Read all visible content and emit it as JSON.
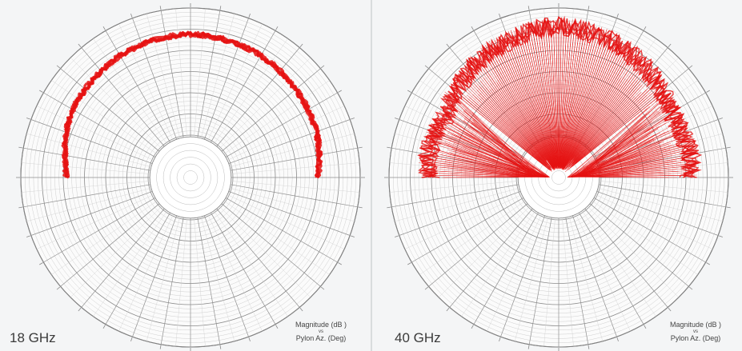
{
  "chart_data": [
    {
      "type": "polar",
      "panel_label": "18 GHz",
      "legend": {
        "line1": "Magnitude (dB )",
        "vs": "vs",
        "line2": "Pylon Az. (Deg)"
      },
      "angular_range_deg": [
        -90,
        90
      ],
      "pattern": {
        "description_free": true,
        "series": [
          {
            "color": "#e51212",
            "angle_deg": [
              -90,
              -80,
              -70,
              -60,
              -50,
              -40,
              -30,
              -20,
              -10,
              0,
              10,
              20,
              30,
              40,
              50,
              60,
              70,
              80,
              90
            ],
            "radius_frac": [
              0.73,
              0.75,
              0.78,
              0.8,
              0.81,
              0.82,
              0.83,
              0.835,
              0.84,
              0.845,
              0.84,
              0.835,
              0.83,
              0.82,
              0.81,
              0.8,
              0.79,
              0.77,
              0.75
            ]
          }
        ]
      }
    },
    {
      "type": "polar",
      "panel_label": "40 GHz",
      "legend": {
        "line1": "Magnitude (dB )",
        "vs": "vs",
        "line2": "Pylon Az. (Deg)"
      },
      "angular_range_deg": [
        -90,
        90
      ],
      "pattern": {
        "series": [
          {
            "color": "#e51212",
            "angle_deg": [
              -90,
              -80,
              -70,
              -60,
              -50,
              -40,
              -30,
              -20,
              -10,
              0,
              10,
              20,
              30,
              40,
              50,
              60,
              70,
              80,
              90
            ],
            "radius_frac": [
              0.82,
              0.84,
              0.83,
              0.82,
              0.85,
              0.88,
              0.9,
              0.92,
              0.94,
              0.95,
              0.94,
              0.92,
              0.9,
              0.88,
              0.85,
              0.83,
              0.83,
              0.85,
              0.83
            ]
          }
        ]
      }
    }
  ]
}
